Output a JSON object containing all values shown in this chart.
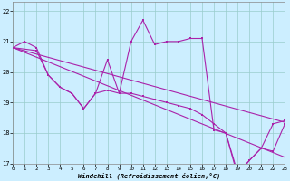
{
  "xlabel": "Windchill (Refroidissement éolien,°C)",
  "background_color": "#cceeff",
  "grid_color": "#99cccc",
  "line_color": "#aa22aa",
  "xlim": [
    0,
    23
  ],
  "ylim": [
    17,
    22.3
  ],
  "yticks": [
    17,
    18,
    19,
    20,
    21,
    22
  ],
  "xticks": [
    0,
    1,
    2,
    3,
    4,
    5,
    6,
    7,
    8,
    9,
    10,
    11,
    12,
    13,
    14,
    15,
    16,
    17,
    18,
    19,
    20,
    21,
    22,
    23
  ],
  "line1_x": [
    0,
    1,
    2,
    3,
    4,
    5,
    6,
    7,
    8,
    9,
    10,
    11,
    12,
    13,
    14,
    15,
    16,
    17,
    18,
    19,
    20,
    21,
    22,
    23
  ],
  "line1_y": [
    20.8,
    21.0,
    20.8,
    19.9,
    19.5,
    19.3,
    18.8,
    19.3,
    20.4,
    19.3,
    21.0,
    21.7,
    20.9,
    21.0,
    21.0,
    21.1,
    21.1,
    18.1,
    18.0,
    16.6,
    17.1,
    17.5,
    18.3,
    18.4
  ],
  "line2_x": [
    0,
    2,
    3,
    4,
    5,
    6,
    7,
    8,
    9,
    10,
    11,
    12,
    13,
    14,
    15,
    16,
    17,
    18,
    19,
    20,
    21,
    22,
    23
  ],
  "line2_y": [
    20.8,
    20.7,
    19.9,
    19.5,
    19.3,
    18.8,
    19.3,
    19.4,
    19.3,
    19.3,
    19.2,
    19.1,
    19.0,
    18.9,
    18.8,
    18.6,
    18.3,
    18.0,
    16.7,
    17.1,
    17.5,
    17.4,
    18.3
  ],
  "line3_x": [
    0,
    23
  ],
  "line3_y": [
    20.8,
    18.35
  ],
  "line4_x": [
    0,
    23
  ],
  "line4_y": [
    20.8,
    17.2
  ]
}
